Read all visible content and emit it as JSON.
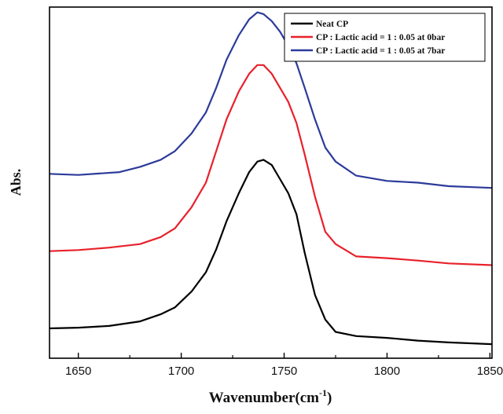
{
  "chart_data": {
    "type": "line",
    "title": "",
    "xlabel": "Wavenumber(cm",
    "xlabel_sup": "-1",
    "xlabel_close": ")",
    "ylabel": "Abs.",
    "xlim": [
      1636,
      1851
    ],
    "ylim": [
      0,
      1
    ],
    "xticks": [
      1650,
      1700,
      1750,
      1800,
      1850
    ],
    "xtick_labels": [
      "1650",
      "1700",
      "1750",
      "1800",
      "1850"
    ],
    "y_ticks_visible": false,
    "grid": false,
    "legend_position": "top-right",
    "series": [
      {
        "name": "Neat CP",
        "color": "#000000",
        "points": [
          [
            1636,
            0.085
          ],
          [
            1650,
            0.087
          ],
          [
            1665,
            0.092
          ],
          [
            1680,
            0.105
          ],
          [
            1690,
            0.125
          ],
          [
            1697,
            0.145
          ],
          [
            1705,
            0.19
          ],
          [
            1712,
            0.245
          ],
          [
            1717,
            0.31
          ],
          [
            1722,
            0.39
          ],
          [
            1728,
            0.47
          ],
          [
            1733,
            0.53
          ],
          [
            1737,
            0.56
          ],
          [
            1740,
            0.565
          ],
          [
            1744,
            0.55
          ],
          [
            1748,
            0.51
          ],
          [
            1752,
            0.47
          ],
          [
            1756,
            0.41
          ],
          [
            1760,
            0.3
          ],
          [
            1765,
            0.18
          ],
          [
            1770,
            0.11
          ],
          [
            1775,
            0.075
          ],
          [
            1785,
            0.063
          ],
          [
            1800,
            0.058
          ],
          [
            1815,
            0.05
          ],
          [
            1830,
            0.045
          ],
          [
            1851,
            0.04
          ]
        ]
      },
      {
        "name": "CP : Lactic acid = 1 : 0.05 at 0bar",
        "color": "#e8212b",
        "points": [
          [
            1636,
            0.305
          ],
          [
            1650,
            0.308
          ],
          [
            1665,
            0.315
          ],
          [
            1680,
            0.325
          ],
          [
            1690,
            0.345
          ],
          [
            1697,
            0.37
          ],
          [
            1705,
            0.43
          ],
          [
            1712,
            0.5
          ],
          [
            1717,
            0.59
          ],
          [
            1722,
            0.68
          ],
          [
            1728,
            0.76
          ],
          [
            1733,
            0.81
          ],
          [
            1737,
            0.835
          ],
          [
            1740,
            0.835
          ],
          [
            1744,
            0.81
          ],
          [
            1748,
            0.77
          ],
          [
            1752,
            0.73
          ],
          [
            1756,
            0.67
          ],
          [
            1760,
            0.58
          ],
          [
            1765,
            0.46
          ],
          [
            1770,
            0.36
          ],
          [
            1775,
            0.325
          ],
          [
            1785,
            0.29
          ],
          [
            1800,
            0.285
          ],
          [
            1815,
            0.278
          ],
          [
            1830,
            0.27
          ],
          [
            1851,
            0.265
          ]
        ]
      },
      {
        "name": "CP : Lactic acid = 1 : 0.05 at 7bar",
        "color": "#2c3b9a",
        "points": [
          [
            1636,
            0.525
          ],
          [
            1650,
            0.522
          ],
          [
            1660,
            0.526
          ],
          [
            1670,
            0.53
          ],
          [
            1680,
            0.545
          ],
          [
            1690,
            0.565
          ],
          [
            1697,
            0.59
          ],
          [
            1705,
            0.64
          ],
          [
            1712,
            0.7
          ],
          [
            1717,
            0.77
          ],
          [
            1722,
            0.85
          ],
          [
            1728,
            0.92
          ],
          [
            1733,
            0.965
          ],
          [
            1737,
            0.985
          ],
          [
            1740,
            0.98
          ],
          [
            1744,
            0.96
          ],
          [
            1748,
            0.93
          ],
          [
            1752,
            0.89
          ],
          [
            1756,
            0.84
          ],
          [
            1760,
            0.77
          ],
          [
            1765,
            0.68
          ],
          [
            1770,
            0.6
          ],
          [
            1775,
            0.56
          ],
          [
            1785,
            0.52
          ],
          [
            1800,
            0.505
          ],
          [
            1815,
            0.5
          ],
          [
            1830,
            0.49
          ],
          [
            1851,
            0.485
          ]
        ]
      }
    ]
  }
}
